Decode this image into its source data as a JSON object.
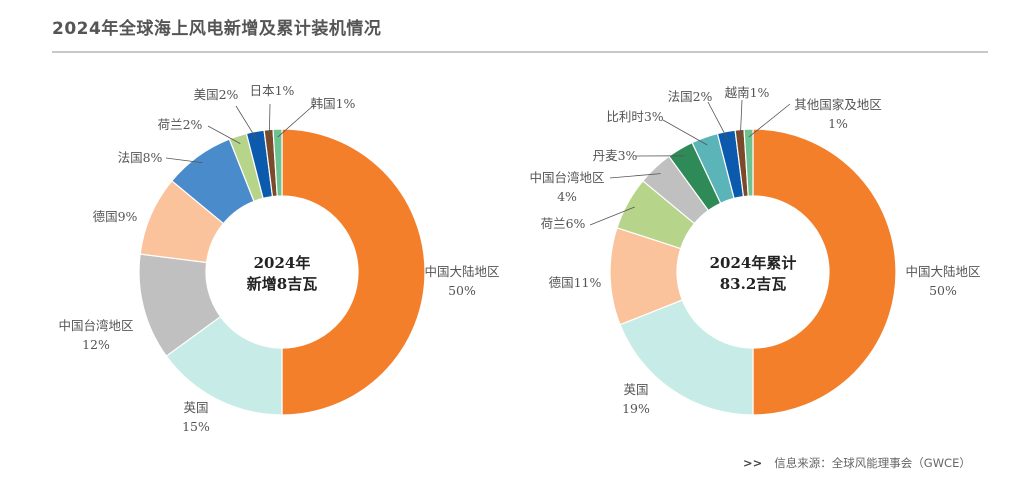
{
  "title": "2024年全球海上风电新增及累计装机情况",
  "source": {
    "arrow": ">>",
    "text": "信息来源：全球风能理事会（GWCE）"
  },
  "chart_data": [
    {
      "type": "pie",
      "donut": true,
      "center_label": [
        "2024年",
        "新增8吉瓦"
      ],
      "unit": "%",
      "slices": [
        {
          "name": "中国大陆地区",
          "value": 50,
          "color": "#F47F2A"
        },
        {
          "name": "英国",
          "value": 15,
          "color": "#C7EBE6"
        },
        {
          "name": "中国台湾地区",
          "value": 12,
          "color": "#C0C0C0"
        },
        {
          "name": "德国",
          "value": 9,
          "color": "#FBC39C"
        },
        {
          "name": "法国",
          "value": 8,
          "color": "#4A8BCB"
        },
        {
          "name": "荷兰",
          "value": 2,
          "color": "#B6D48A"
        },
        {
          "name": "美国",
          "value": 2,
          "color": "#0B5AAE"
        },
        {
          "name": "日本",
          "value": 1,
          "color": "#7A4A2A"
        },
        {
          "name": "韩国",
          "value": 1,
          "color": "#6CC391"
        }
      ]
    },
    {
      "type": "pie",
      "donut": true,
      "center_label": [
        "2024年累计",
        "83.2吉瓦"
      ],
      "unit": "%",
      "slices": [
        {
          "name": "中国大陆地区",
          "value": 50,
          "color": "#F47F2A"
        },
        {
          "name": "英国",
          "value": 19,
          "color": "#C7EBE6"
        },
        {
          "name": "德国",
          "value": 11,
          "color": "#FBC39C"
        },
        {
          "name": "荷兰",
          "value": 6,
          "color": "#B6D48A"
        },
        {
          "name": "中国台湾地区",
          "value": 4,
          "color": "#C0C0C0"
        },
        {
          "name": "丹麦",
          "value": 3,
          "color": "#2E8B57"
        },
        {
          "name": "比利时",
          "value": 3,
          "color": "#5BB4B8"
        },
        {
          "name": "法国",
          "value": 2,
          "color": "#0B5AAE"
        },
        {
          "name": "越南",
          "value": 1,
          "color": "#7A4A2A"
        },
        {
          "name": "其他国家及地区",
          "value": 1,
          "color": "#6CC391"
        }
      ]
    }
  ]
}
